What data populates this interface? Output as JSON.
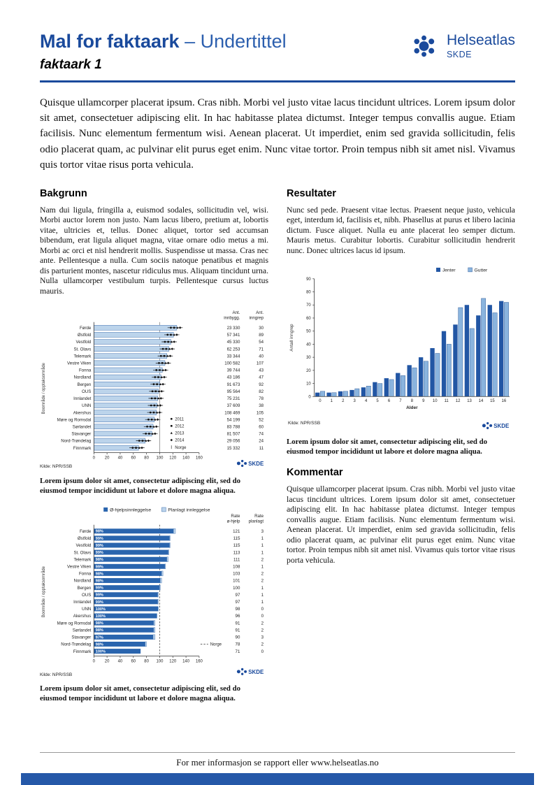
{
  "colors": {
    "brand_blue": "#1a4a9c",
    "suffix_blue": "#2c5fae",
    "bar_light": "#bcd4eb",
    "bar_light_stroke": "#3f6fae",
    "bar_dark": "#2a65ae",
    "jenter": "#2256a4",
    "gutter": "#8ab4de",
    "footer_bar": "#2558a8"
  },
  "header": {
    "title": "Mal for faktaark",
    "title_suffix": "– Undertittel",
    "doc_label": "faktaark 1",
    "logo_text": "Helseatlas",
    "logo_sub": "SKDE"
  },
  "intro": "Quisque ullamcorper placerat ipsum. Cras nibh. Morbi vel justo vitae lacus tincidunt ultrices. Lorem ipsum dolor sit amet, consectetuer adipiscing elit. In hac habitasse platea dictumst. Integer tempus convallis augue. Etiam facilisis. Nunc elementum fermentum wisi. Aenean placerat. Ut imperdiet, enim sed gravida sollicitudin, felis odio placerat quam, ac pulvinar elit purus eget enim. Nunc vitae tortor. Proin tempus nibh sit amet nisl. Vivamus quis tortor vitae risus porta vehicula.",
  "sections": {
    "bakgrunn": {
      "heading": "Bakgrunn",
      "body": "Nam dui ligula, fringilla a, euismod sodales, sollicitudin vel, wisi. Morbi auctor lorem non justo. Nam lacus libero, pretium at, lobortis vitae, ultricies et, tellus. Donec aliquet, tortor sed accumsan bibendum, erat ligula aliquet magna, vitae ornare odio metus a mi. Morbi ac orci et nisl hendrerit mollis. Suspendisse ut massa. Cras nec ante. Pellentesque a nulla. Cum sociis natoque penatibus et magnis dis parturient montes, nascetur ridiculus mus. Aliquam tincidunt urna. Nulla ullamcorper vestibulum turpis. Pellentesque cursus luctus mauris."
    },
    "resultater": {
      "heading": "Resultater",
      "body": "Nunc sed pede. Praesent vitae lectus. Praesent neque justo, vehicula eget, interdum id, facilisis et, nibh. Phasellus at purus et libero lacinia dictum. Fusce aliquet. Nulla eu ante placerat leo semper dictum. Mauris metus. Curabitur lobortis. Curabitur sollicitudin hendrerit nunc. Donec ultrices lacus id ipsum."
    },
    "kommentar": {
      "heading": "Kommentar",
      "body": "Quisque ullamcorper placerat ipsum. Cras nibh. Morbi vel justo vitae lacus tincidunt ultrices. Lorem ipsum dolor sit amet, consectetuer adipiscing elit. In hac habitasse platea dictumst. Integer tempus convallis augue. Etiam facilisis. Nunc elementum fermentum wisi. Aenean placerat. Ut imperdiet, enim sed gravida sollicitudin, felis odio placerat quam, ac pulvinar elit purus eget enim. Nunc vitae tortor. Proin tempus nibh sit amet nisl. Vivamus quis tortor vitae risus porta vehicula."
    }
  },
  "captions": {
    "chart1": "Lorem ipsum dolor sit amet, consectetur adipiscing elit, sed do eiusmod tempor incididunt ut labore et dolore magna aliqua.",
    "chart2": "Lorem ipsum dolor sit amet, consectetur adipiscing elit, sed do eiusmod tempor incididunt ut labore et dolore magna aliqua.",
    "chart3": "Lorem ipsum dolor sit amet, consectetur adipiscing elit, sed do eiusmod tempor incididunt ut labore et dolore magna aliqua."
  },
  "footer": {
    "text": "For mer informasjon se rapport eller www.helseatlas.no"
  },
  "chart_data": [
    {
      "type": "bar",
      "orientation": "horizontal",
      "ylabel": "Boområde / opptaksområde",
      "xlim": [
        0,
        160
      ],
      "xticks": [
        0,
        20,
        40,
        60,
        80,
        100,
        120,
        140,
        160
      ],
      "categories": [
        "Førde",
        "Østfold",
        "Vestfold",
        "St. Olavs",
        "Telemark",
        "Vestre Viken",
        "Fonna",
        "Nordland",
        "Bergen",
        "OUS",
        "Innlandet",
        "UNN",
        "Akershus",
        "Møre og Romsdal",
        "Sørlandet",
        "Stavanger",
        "Nord-Trøndelag",
        "Finnmark"
      ],
      "values": [
        126,
        121,
        117,
        114,
        111,
        108,
        104,
        102,
        100,
        98,
        97,
        96,
        95,
        92,
        90,
        88,
        78,
        68
      ],
      "reference_line": 100,
      "columns": {
        "headers": [
          [
            "Ant.",
            "innbygg."
          ],
          [
            "Ant.",
            "inngrep"
          ]
        ],
        "ant_innbygg": [
          "23 330",
          "57 341",
          "45 330",
          "62 253",
          "33 344",
          "100 582",
          "39 744",
          "43 186",
          "91 673",
          "95 564",
          "75 231",
          "37 609",
          "108 469",
          "54 199",
          "83 788",
          "81 507",
          "29 056",
          "15 332"
        ],
        "ant_inngrep": [
          "30",
          "89",
          "54",
          "71",
          "40",
          "107",
          "43",
          "47",
          "92",
          "82",
          "78",
          "38",
          "105",
          "52",
          "60",
          "74",
          "24",
          "11"
        ]
      },
      "legend": [
        "2011",
        "2012",
        "2013",
        "2014",
        "Norge"
      ],
      "source": "Kilde: NPR/SSB",
      "brand": "SKDE"
    },
    {
      "type": "stacked-bar",
      "orientation": "horizontal",
      "legend": [
        "Ø-hjelpsinnleggelse",
        "Planlagt innleggelse"
      ],
      "ylabel": "Boområde / opptaksområde",
      "xlim": [
        0,
        160
      ],
      "xticks": [
        0,
        20,
        40,
        60,
        80,
        100,
        120,
        140,
        160
      ],
      "categories": [
        "Førde",
        "Østfold",
        "Vestfold",
        "St. Olavs",
        "Telemark",
        "Vestre Viken",
        "Fonna",
        "Nordland",
        "Bergen",
        "OUS",
        "Innlandet",
        "UNN",
        "Akershus",
        "Møre og Romsdal",
        "Sørlandet",
        "Stavanger",
        "Nord-Trøndelag",
        "Finnmark"
      ],
      "series": [
        {
          "name": "Ø-hjelpsinnleggelse",
          "values": [
            121,
            115,
            115,
            113,
            111,
            108,
            103,
            101,
            100,
            97,
            97,
            98,
            96,
            91,
            91,
            90,
            78,
            71
          ]
        },
        {
          "name": "Planlagt innleggelse",
          "values": [
            3,
            1,
            1,
            1,
            2,
            1,
            2,
            2,
            1,
            1,
            1,
            0,
            0,
            2,
            2,
            3,
            2,
            0
          ]
        }
      ],
      "bar_labels": [
        "98%",
        "99%",
        "99%",
        "99%",
        "98%",
        "99%",
        "98%",
        "98%",
        "99%",
        "99%",
        "99%",
        "100%",
        "100%",
        "98%",
        "98%",
        "97%",
        "98%",
        "100%"
      ],
      "columns": {
        "headers": [
          [
            "Rate",
            "ø-hjelp"
          ],
          [
            "Rate",
            "planlagt"
          ]
        ],
        "rate_ohjelp": [
          "121",
          "115",
          "115",
          "113",
          "111",
          "108",
          "103",
          "101",
          "100",
          "97",
          "97",
          "98",
          "96",
          "91",
          "91",
          "90",
          "78",
          "71"
        ],
        "rate_planlagt": [
          "3",
          "1",
          "1",
          "1",
          "2",
          "1",
          "2",
          "2",
          "1",
          "1",
          "1",
          "0",
          "0",
          "2",
          "2",
          "3",
          "2",
          "0"
        ]
      },
      "reference_line": 100,
      "reference_label": "Norge",
      "source": "Kilde: NPR/SSB",
      "brand": "SKDE"
    },
    {
      "type": "bar",
      "orientation": "vertical",
      "legend": [
        "Jenter",
        "Gutter"
      ],
      "categories": [
        "0",
        "1",
        "2",
        "3",
        "4",
        "5",
        "6",
        "7",
        "8",
        "9",
        "10",
        "11",
        "12",
        "13",
        "14",
        "15",
        "16"
      ],
      "series": [
        {
          "name": "Jenter",
          "values": [
            3,
            3,
            4,
            5,
            7,
            11,
            14,
            18,
            24,
            30,
            37,
            50,
            55,
            70,
            62,
            70,
            73
          ]
        },
        {
          "name": "Gutter",
          "values": [
            4,
            3,
            4,
            6,
            8,
            10,
            13,
            16,
            22,
            27,
            33,
            40,
            68,
            52,
            75,
            64,
            72
          ]
        }
      ],
      "xlabel": "Alder",
      "ylabel": "Antall inngrep",
      "ylim": [
        0,
        90
      ],
      "yticks": [
        0,
        10,
        20,
        30,
        40,
        50,
        60,
        70,
        80,
        90
      ],
      "source": "Kilde: NPR/SSB",
      "brand": "SKDE"
    }
  ]
}
